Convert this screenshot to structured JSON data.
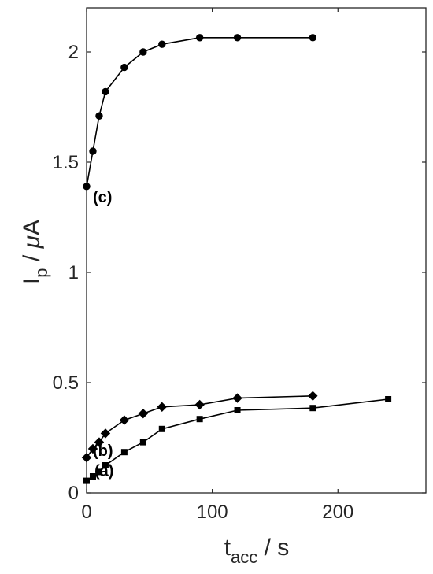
{
  "chart_data": {
    "type": "line",
    "xlabel": {
      "main": "t",
      "sub": "acc",
      "rest": " / s"
    },
    "ylabel": {
      "main": "I",
      "sub": "p",
      "rest": " / ",
      "greek": "μ",
      "unit": "A"
    },
    "xlim": [
      0,
      270
    ],
    "ylim": [
      0,
      2.2
    ],
    "xticks": [
      0,
      100,
      200
    ],
    "yticks": [
      0,
      0.5,
      1,
      1.5,
      2
    ],
    "xtick_labels": [
      "0",
      "100",
      "200"
    ],
    "ytick_labels": [
      "0",
      "0.5",
      "1",
      "1.5",
      "2"
    ],
    "grid": false,
    "series": [
      {
        "label": "(a)",
        "marker": "square",
        "x": [
          0,
          5,
          10,
          15,
          30,
          45,
          60,
          90,
          120,
          180,
          240
        ],
        "y": [
          0.055,
          0.075,
          0.095,
          0.125,
          0.185,
          0.23,
          0.29,
          0.335,
          0.375,
          0.385,
          0.425
        ]
      },
      {
        "label": "(b)",
        "marker": "diamond",
        "x": [
          0,
          5,
          10,
          15,
          30,
          45,
          60,
          90,
          120,
          180
        ],
        "y": [
          0.16,
          0.2,
          0.23,
          0.27,
          0.33,
          0.36,
          0.39,
          0.4,
          0.43,
          0.44
        ]
      },
      {
        "label": "(c)",
        "marker": "circle",
        "x": [
          0,
          5,
          10,
          15,
          30,
          45,
          60,
          90,
          120,
          180
        ],
        "y": [
          1.39,
          1.55,
          1.71,
          1.82,
          1.93,
          2.0,
          2.035,
          2.065,
          2.065,
          2.065
        ]
      }
    ]
  }
}
